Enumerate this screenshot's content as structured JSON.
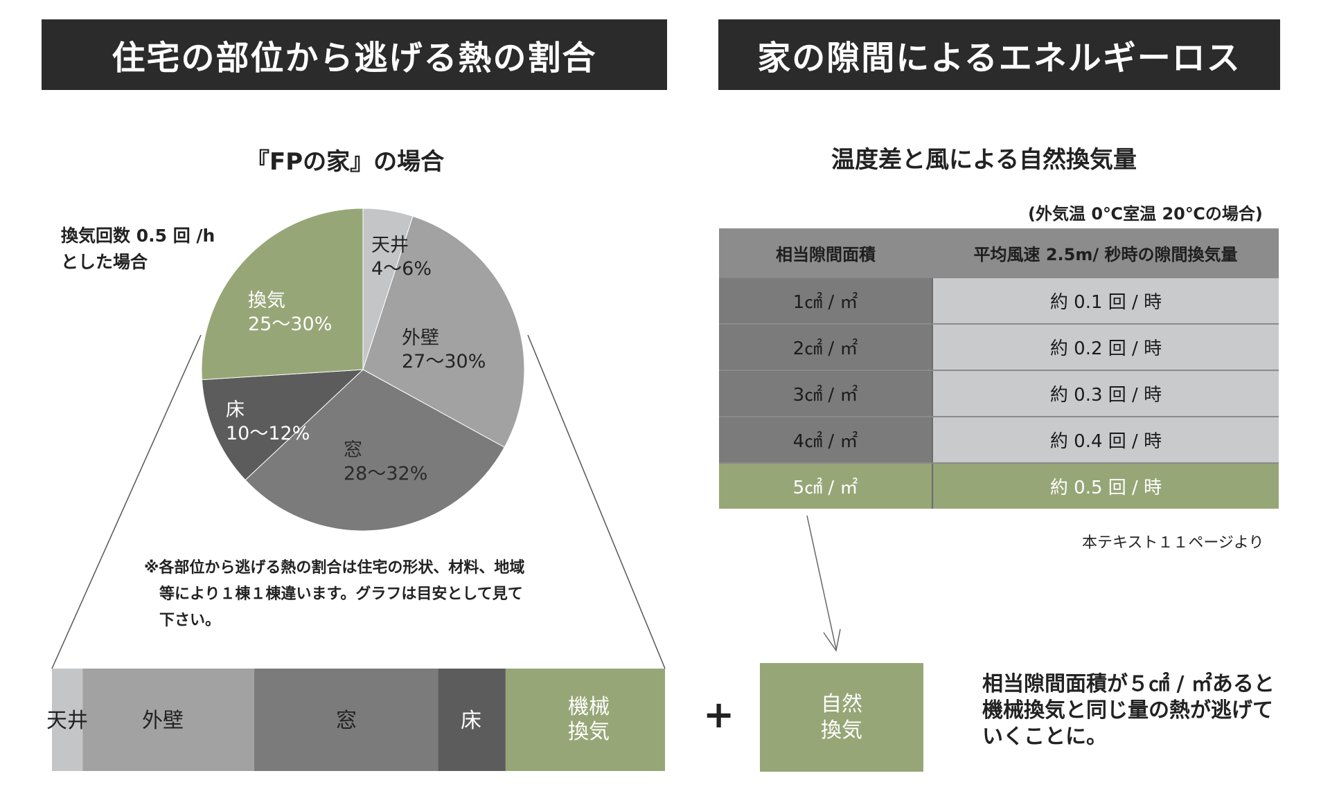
{
  "left_header": "住宅の部位から逃げる熱の割合",
  "right_header": "家の隙間によるエネルギーロス",
  "left_subtitle": "『FPの家』の場合",
  "ventilation_note_lines": [
    "換気回数 0.5 回 /h",
    "とした場合"
  ],
  "footnote_lines": [
    "※各部位から逃げる熱の割合は住宅の形状、材料、地域",
    "等により１棟１棟違います。グラフは目安として見て",
    "下さい。"
  ],
  "colors": {
    "ceiling": "#c3c5c7",
    "wall": "#a2a2a2",
    "window": "#7b7b7b",
    "floor": "#5c5c5c",
    "ventilation": "#97a677",
    "header_bg": "#2b2b2b"
  },
  "chart_data": [
    {
      "type": "pie",
      "title": "『FPの家』の場合",
      "slices": [
        {
          "label": "天井",
          "range": "4〜6%",
          "value": 5
        },
        {
          "label": "外壁",
          "range": "27〜30%",
          "value": 28
        },
        {
          "label": "窓",
          "range": "28〜32%",
          "value": 30
        },
        {
          "label": "床",
          "range": "10〜12%",
          "value": 11
        },
        {
          "label": "換気",
          "range": "25〜30%",
          "value": 26
        }
      ]
    },
    {
      "type": "bar",
      "orientation": "horizontal-stacked",
      "segments": [
        {
          "label": "天井",
          "value": 5
        },
        {
          "label": "外壁",
          "value": 28
        },
        {
          "label": "窓",
          "value": 30
        },
        {
          "label": "床",
          "value": 11
        },
        {
          "label": "機械\n換気",
          "value": 26
        }
      ]
    },
    {
      "type": "table",
      "title": "温度差と風による自然換気量",
      "condition": "(外気温 0℃室温 20℃の場合)",
      "columns": [
        "相当隙間面積",
        "平均風速 2.5m/ 秒時の隙間換気量"
      ],
      "rows": [
        [
          "1㎠ / ㎡",
          "約 0.1 回 / 時"
        ],
        [
          "2㎠ / ㎡",
          "約 0.2 回 / 時"
        ],
        [
          "3㎠ / ㎡",
          "約 0.3 回 / 時"
        ],
        [
          "4㎠ / ㎡",
          "約 0.4 回 / 時"
        ],
        [
          "5㎠ / ㎡",
          "約 0.5 回 / 時"
        ]
      ],
      "highlight_row": 4,
      "source": "本テキスト１１ページより"
    }
  ],
  "plus_sign": "+",
  "natural_vent_box": "自然\n換気",
  "conclusion_lines": [
    "相当隙間面積が５㎠ / ㎡あると",
    "機械換気と同じ量の熱が逃げて",
    "いくことに。"
  ]
}
